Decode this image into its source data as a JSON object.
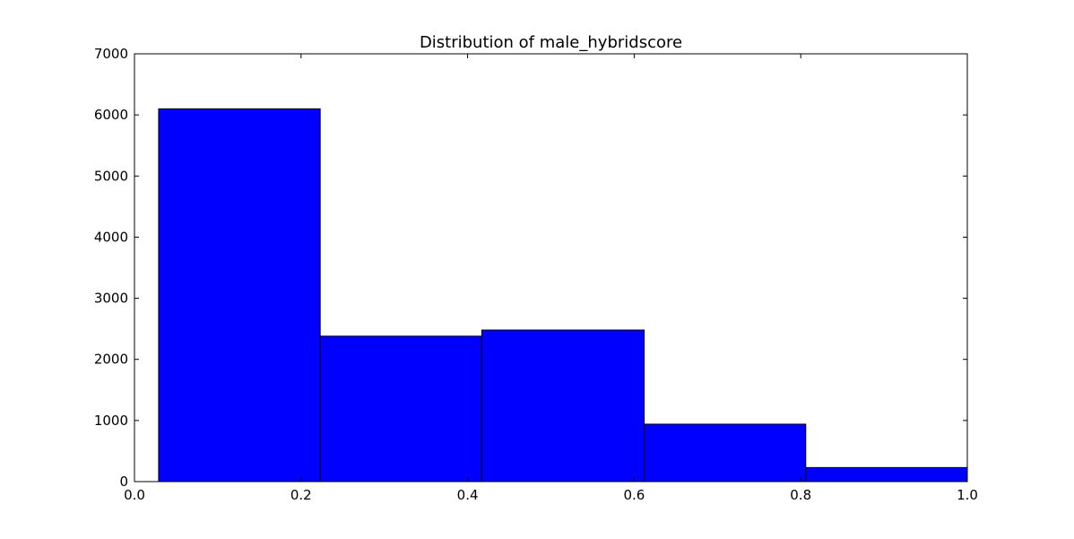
{
  "chart_data": {
    "type": "bar",
    "title": "Distribution of male_hybridscore",
    "xlabel": "",
    "ylabel": "",
    "xlim": [
      0.0,
      1.0
    ],
    "ylim": [
      0,
      7000
    ],
    "x_ticks": [
      "0.0",
      "0.2",
      "0.4",
      "0.6",
      "0.8",
      "1.0"
    ],
    "y_ticks": [
      "0",
      "1000",
      "2000",
      "3000",
      "4000",
      "5000",
      "6000",
      "7000"
    ],
    "bins": [
      {
        "start": 0.029,
        "end": 0.223,
        "value": 6100
      },
      {
        "start": 0.223,
        "end": 0.417,
        "value": 2380
      },
      {
        "start": 0.417,
        "end": 0.612,
        "value": 2480
      },
      {
        "start": 0.612,
        "end": 0.806,
        "value": 940
      },
      {
        "start": 0.806,
        "end": 1.0,
        "value": 230
      }
    ],
    "bar_color": "#0000ff",
    "edge_color": "#000000",
    "grid": false,
    "legend": "none"
  }
}
